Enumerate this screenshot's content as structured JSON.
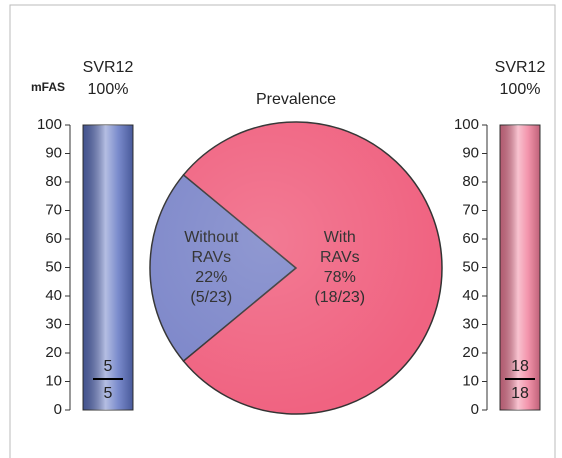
{
  "chart_data": [
    {
      "type": "bar",
      "axis_label": "mFAS",
      "title": "SVR12",
      "values": [
        100
      ],
      "value_labels": [
        "100%"
      ],
      "color": "#5a6fc0",
      "ylim": [
        0,
        100
      ],
      "yticks": [
        0,
        10,
        20,
        30,
        40,
        50,
        60,
        70,
        80,
        90,
        100
      ],
      "fraction": {
        "numerator": 5,
        "denominator": 5
      }
    },
    {
      "type": "pie",
      "title": "Prevalence",
      "labels": [
        [
          "Without",
          "RAVs"
        ],
        [
          "With",
          "RAVs"
        ]
      ],
      "values": [
        22,
        78
      ],
      "value_labels": [
        "22%",
        "78%"
      ],
      "counts": [
        "(5/23)",
        "(18/23)"
      ],
      "colors": [
        "#7c86c9",
        "#f06381"
      ]
    },
    {
      "type": "bar",
      "title": "SVR12",
      "values": [
        100
      ],
      "value_labels": [
        "100%"
      ],
      "color": "#f07a97",
      "ylim": [
        0,
        100
      ],
      "yticks": [
        0,
        10,
        20,
        30,
        40,
        50,
        60,
        70,
        80,
        90,
        100
      ],
      "fraction": {
        "numerator": 18,
        "denominator": 18
      }
    }
  ]
}
